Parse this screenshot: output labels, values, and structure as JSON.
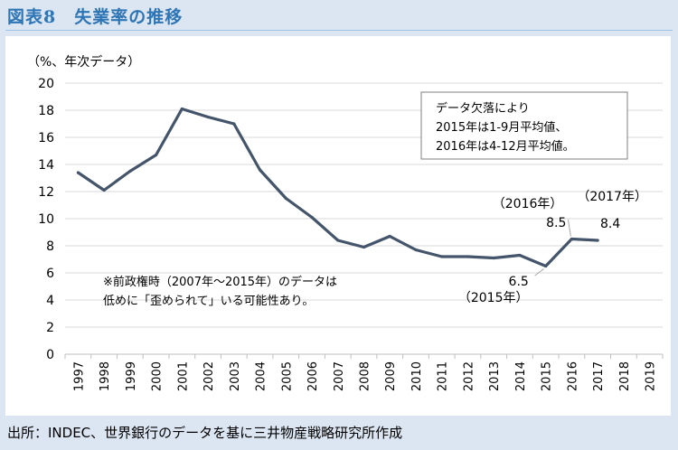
{
  "figure_title": "図表8　失業率の推移",
  "source": "出所：INDEC、世界銀行のデータを基に三井物産戦略研究所作成",
  "chart_data": {
    "type": "line",
    "y_unit_label": "（%、年次データ）",
    "categories": [
      "1997",
      "1998",
      "1999",
      "2000",
      "2001",
      "2002",
      "2003",
      "2004",
      "2005",
      "2006",
      "2007",
      "2008",
      "2009",
      "2010",
      "2011",
      "2012",
      "2013",
      "2014",
      "2015",
      "2016",
      "2017",
      "2018",
      "2019"
    ],
    "series": [
      {
        "values": [
          13.4,
          12.1,
          13.5,
          14.7,
          18.1,
          17.5,
          17.0,
          13.6,
          11.5,
          10.1,
          8.4,
          7.9,
          8.7,
          7.7,
          7.2,
          7.2,
          7.1,
          7.3,
          6.5,
          8.5,
          8.4,
          null,
          null
        ],
        "color": "#44546a"
      }
    ],
    "ylim": [
      0,
      20
    ],
    "yticks": [
      0,
      2,
      4,
      6,
      8,
      10,
      12,
      14,
      16,
      18,
      20
    ],
    "grid": true,
    "data_labels": [
      {
        "text": "（2016年）",
        "year": "2016"
      },
      {
        "text": "8.5",
        "year": "2016"
      },
      {
        "text": "（2017年）",
        "year": "2017"
      },
      {
        "text": "8.4",
        "year": "2017"
      },
      {
        "text": "6.5",
        "year": "2015"
      },
      {
        "text": "（2015年）",
        "year": "2015"
      }
    ],
    "box_note": [
      "データ欠落により",
      "2015年は1-9月平均値、",
      "2016年は4-12月平均値。"
    ],
    "note": [
      "※前政権時（2007年～2015年）のデータは",
      "低めに「歪められて」いる可能性あり。"
    ]
  }
}
